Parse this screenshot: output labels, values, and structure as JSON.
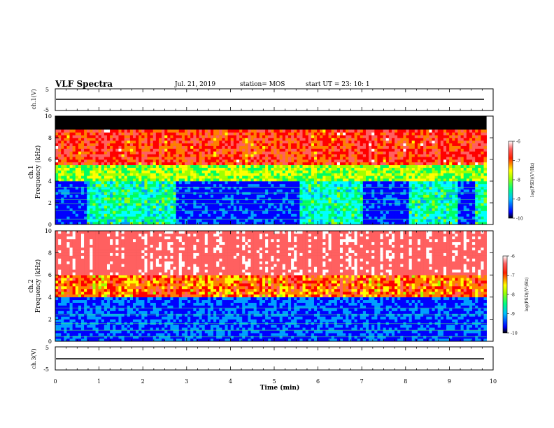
{
  "header": {
    "title": "VLF Spectra",
    "date": "Jul. 21, 2019",
    "station": "station= MOS",
    "start_time": "start  UT =   23: 10: 1"
  },
  "colors": {
    "background": "#ffffff",
    "axes": "#000000",
    "no_data": "#000000",
    "colormap": [
      "#00007a",
      "#0000ff",
      "#00a0ff",
      "#00ffff",
      "#00ff60",
      "#a0ff00",
      "#ffff00",
      "#ff8000",
      "#ff0000",
      "#ff6060",
      "#ffffff"
    ]
  },
  "chart_data": [
    {
      "type": "line",
      "panel": "ch1-voltage",
      "ylabel": "ch.1(V)",
      "ylim": [
        -5,
        5
      ],
      "y_ticks": [
        "5",
        "-5"
      ],
      "xlim": [
        0,
        10
      ],
      "series": [
        {
          "x": [
            0,
            10
          ],
          "values": [
            0,
            0
          ]
        }
      ]
    },
    {
      "type": "heatmap",
      "panel": "ch1-spectrogram",
      "ylabel": "Frequency (kHz)",
      "channel_label": "ch.1",
      "xlim": [
        0,
        10
      ],
      "ylim": [
        0,
        10
      ],
      "y_ticks": [
        "0",
        "2",
        "4",
        "6",
        "8",
        "10"
      ],
      "data_end_min": 9.85,
      "no_data_above_khz": 8.8,
      "colorbar": {
        "label": "log(PSD)(V²/Hz)",
        "range": [
          -10,
          -6
        ],
        "ticks": [
          "-6",
          "-7",
          "-8",
          "-9",
          "-10"
        ]
      },
      "quiet_intervals_min": [
        [
          0,
          0.7
        ],
        [
          2.75,
          5.6
        ],
        [
          7.0,
          8.1
        ],
        [
          9.2,
          9.6
        ]
      ],
      "active_intervals_min": [
        [
          0.7,
          2.75
        ],
        [
          5.6,
          7.0
        ],
        [
          8.1,
          9.2
        ],
        [
          9.6,
          9.85
        ]
      ]
    },
    {
      "type": "heatmap",
      "panel": "ch2-spectrogram",
      "ylabel": "Frequency (kHz)",
      "channel_label": "ch.2",
      "xlim": [
        0,
        10
      ],
      "ylim": [
        0,
        10
      ],
      "y_ticks": [
        "0",
        "2",
        "4",
        "6",
        "8",
        "10"
      ],
      "data_end_min": 9.85,
      "colorbar": {
        "label": "log(PSD)(V²/Hz)",
        "range": [
          -10,
          -6
        ],
        "ticks": [
          "-6",
          "-7",
          "-8",
          "-9",
          "-10"
        ]
      }
    },
    {
      "type": "line",
      "panel": "ch3-voltage",
      "ylabel": "ch.3(V)",
      "ylim": [
        -5,
        5
      ],
      "y_ticks": [
        "5",
        "-5"
      ],
      "xlim": [
        0,
        10
      ],
      "series": [
        {
          "x": [
            0,
            10
          ],
          "values": [
            -0.5,
            -0.5
          ]
        }
      ]
    }
  ],
  "x_axis": {
    "xlabel": "Time (min)",
    "ticks": [
      "0",
      "1",
      "2",
      "3",
      "4",
      "5",
      "6",
      "7",
      "8",
      "9",
      "10"
    ]
  }
}
